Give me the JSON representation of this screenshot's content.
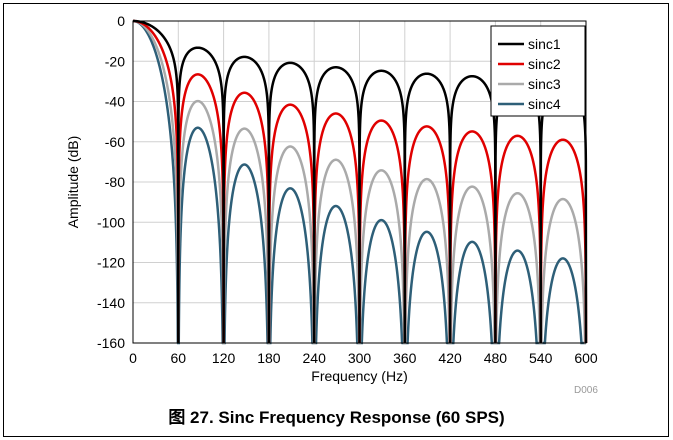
{
  "caption": "图 27. Sinc Frequency Response (60 SPS)",
  "code_label": "D006",
  "chart_data": {
    "type": "line",
    "title": "",
    "xlabel": "Frequency (Hz)",
    "ylabel": "Amplitude (dB)",
    "xlim": [
      0,
      600
    ],
    "ylim": [
      -160,
      0
    ],
    "x_ticks": [
      "0",
      "60",
      "120",
      "180",
      "240",
      "300",
      "360",
      "420",
      "480",
      "540",
      "600"
    ],
    "y_ticks": [
      "0",
      "-20",
      "-40",
      "-60",
      "-80",
      "-100",
      "-120",
      "-140",
      "-160"
    ],
    "legend_position": "top-right",
    "grid": true,
    "null_frequency_hz": 60,
    "series": [
      {
        "name": "sinc1",
        "order": 1,
        "color": "#000000"
      },
      {
        "name": "sinc2",
        "order": 2,
        "color": "#e00000"
      },
      {
        "name": "sinc3",
        "order": 3,
        "color": "#aaaaaa"
      },
      {
        "name": "sinc4",
        "order": 4,
        "color": "#2e5f78"
      }
    ]
  }
}
